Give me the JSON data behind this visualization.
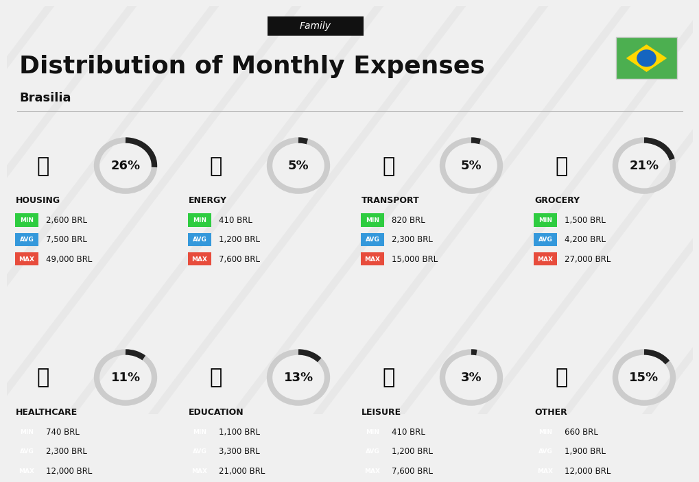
{
  "title": "Distribution of Monthly Expenses",
  "subtitle": "Family",
  "city": "Brasilia",
  "bg_color": "#f0f0f0",
  "categories": [
    {
      "name": "HOUSING",
      "pct": 26,
      "min": "2,600 BRL",
      "avg": "7,500 BRL",
      "max": "49,000 BRL",
      "emoji": "🏗"
    },
    {
      "name": "ENERGY",
      "pct": 5,
      "min": "410 BRL",
      "avg": "1,200 BRL",
      "max": "7,600 BRL",
      "emoji": "⚡"
    },
    {
      "name": "TRANSPORT",
      "pct": 5,
      "min": "820 BRL",
      "avg": "2,300 BRL",
      "max": "15,000 BRL",
      "emoji": "🚌"
    },
    {
      "name": "GROCERY",
      "pct": 21,
      "min": "1,500 BRL",
      "avg": "4,200 BRL",
      "max": "27,000 BRL",
      "emoji": "🛒"
    },
    {
      "name": "HEALTHCARE",
      "pct": 11,
      "min": "740 BRL",
      "avg": "2,300 BRL",
      "max": "12,000 BRL",
      "emoji": "❤"
    },
    {
      "name": "EDUCATION",
      "pct": 13,
      "min": "1,100 BRL",
      "avg": "3,300 BRL",
      "max": "21,000 BRL",
      "emoji": "🎓"
    },
    {
      "name": "LEISURE",
      "pct": 3,
      "min": "410 BRL",
      "avg": "1,200 BRL",
      "max": "7,600 BRL",
      "emoji": "🛍"
    },
    {
      "name": "OTHER",
      "pct": 15,
      "min": "660 BRL",
      "avg": "1,900 BRL",
      "max": "12,000 BRL",
      "emoji": "💰"
    }
  ],
  "color_min": "#2ecc40",
  "color_avg": "#3498db",
  "color_max": "#e74c3c",
  "arc_color": "#222222",
  "arc_bg_color": "#cccccc",
  "icon_emojis": [
    "🏗️",
    "⚡",
    "🚌",
    "🛒",
    "❤️",
    "🎓",
    "🛍️",
    "💰"
  ]
}
